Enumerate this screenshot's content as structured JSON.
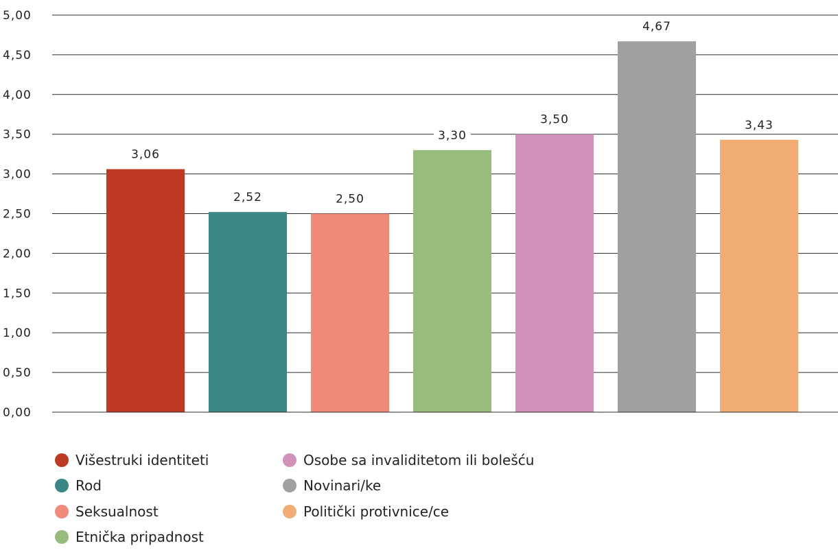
{
  "chart_data": {
    "type": "bar",
    "categories": [
      "Višestruki identiteti",
      "Rod",
      "Seksualnost",
      "Etnička pripadnost",
      "Osobe sa invaliditetom ili bolešću",
      "Novinari/ke",
      "Politički protivnice/ce"
    ],
    "values": [
      3.06,
      2.52,
      2.5,
      3.3,
      3.5,
      4.67,
      3.43
    ],
    "value_labels": [
      "3,06",
      "2,52",
      "2,50",
      "3,30",
      "3,50",
      "4,67",
      "3,43"
    ],
    "colors": [
      "#bf3a22",
      "#3a8785",
      "#f08b79",
      "#98bb7e",
      "#d192b9",
      "#a0a09e",
      "#f1ac74"
    ],
    "ylim": [
      0,
      5
    ],
    "yticks": [
      0,
      0.5,
      1,
      1.5,
      2,
      2.5,
      3,
      3.5,
      4,
      4.5,
      5
    ],
    "ytick_labels": [
      "0,00",
      "0,50",
      "1,00",
      "1,50",
      "2,00",
      "2,50",
      "3,00",
      "3,50",
      "4,00",
      "4,50",
      "5,00"
    ],
    "grid": true,
    "legend_position": "bottom"
  }
}
